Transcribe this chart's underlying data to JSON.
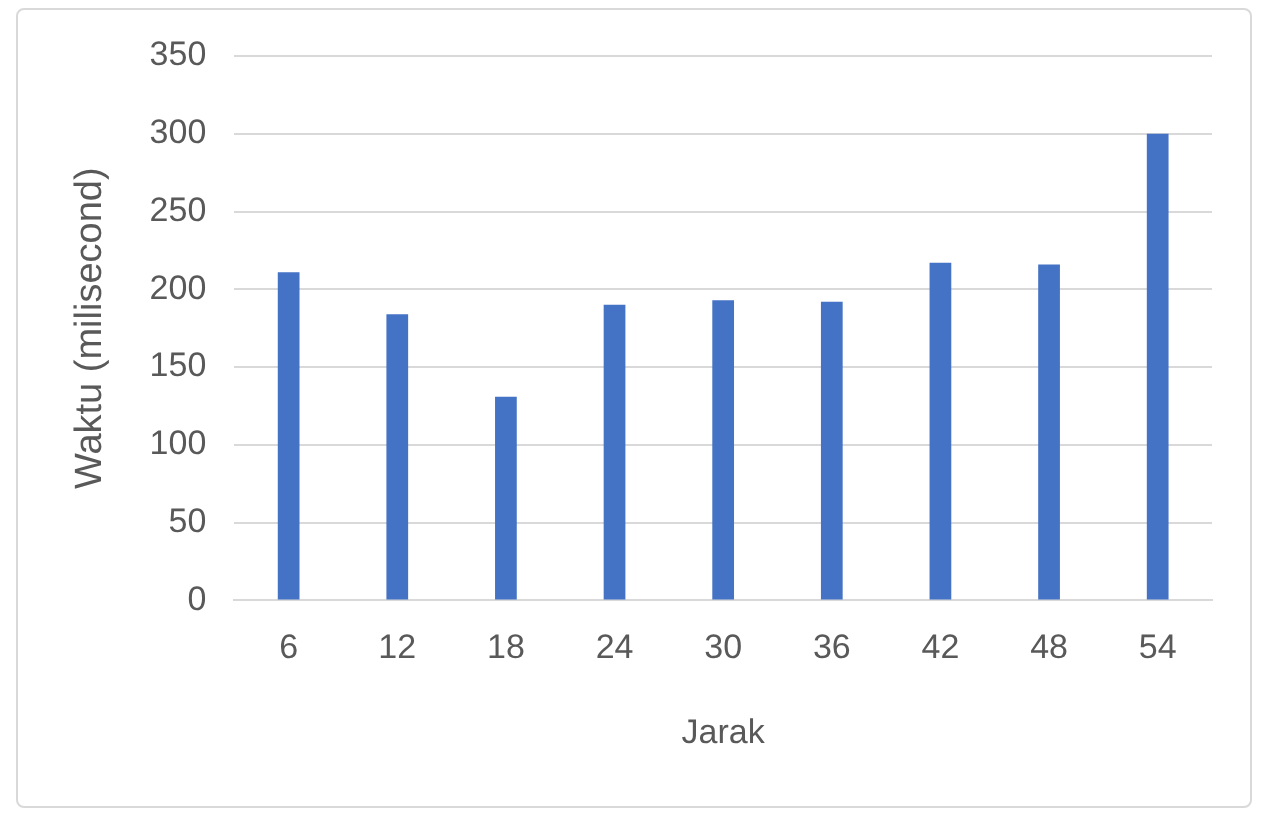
{
  "chart_data": {
    "type": "bar",
    "xlabel": "Jarak",
    "ylabel": "Waktu (milisecond)",
    "categories": [
      "6",
      "12",
      "18",
      "24",
      "30",
      "36",
      "42",
      "48",
      "54"
    ],
    "values": [
      211,
      184,
      131,
      190,
      193,
      192,
      217,
      216,
      300
    ],
    "color": "#4472c4",
    "ylim": [
      0,
      350
    ],
    "yticks": [
      0,
      50,
      100,
      150,
      200,
      250,
      300,
      350
    ],
    "grid": "y"
  }
}
